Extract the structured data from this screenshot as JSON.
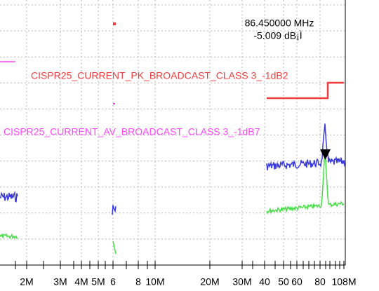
{
  "marker": {
    "frequency": "86.450000 MHz",
    "level": "-5.009 dB¡Ì"
  },
  "limit_lines": [
    {
      "label": "CISPR25_CURRENT_PK_BROADCAST_CLASS 3_-1dB2"
    },
    {
      "label": "CISPR25_CURRENT_AV_BROADCAST_CLASS 3_-1dB7"
    }
  ],
  "x_axis": {
    "tick_labels": [
      "2M",
      "3M",
      "4M",
      "5M",
      "6",
      "8",
      "10M",
      "20M",
      "30M",
      "40",
      "50",
      "60",
      "80",
      "108M"
    ]
  }
}
